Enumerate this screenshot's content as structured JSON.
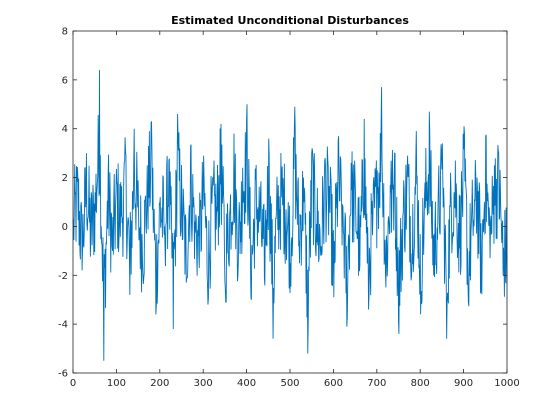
{
  "chart_data": {
    "type": "line",
    "title": "Estimated Unconditional Disturbances",
    "xlabel": "",
    "ylabel": "",
    "xlim": [
      0,
      1000
    ],
    "ylim": [
      -6,
      8
    ],
    "x_ticks": [
      0,
      100,
      200,
      300,
      400,
      500,
      600,
      700,
      800,
      900,
      1000
    ],
    "y_ticks": [
      -6,
      -4,
      -2,
      0,
      2,
      4,
      6,
      8
    ],
    "grid": false,
    "line_color": "#0072BD",
    "n_points": 1000,
    "series": [
      {
        "x_start": 1,
        "x_step": 1,
        "values_sampled_every_10": [
          0.3,
          2.1,
          -1.8,
          3.0,
          -0.5,
          1.4,
          6.4,
          -5.5,
          2.2,
          -1.0,
          1.8,
          0.4,
          3.1,
          -2.8,
          4.0,
          0.6,
          -1.9,
          2.5,
          4.3,
          -3.6,
          1.2,
          0.0,
          2.7,
          -4.2,
          4.6,
          1.1,
          -2.3,
          3.3,
          0.2,
          -1.7,
          2.9,
          -3.2,
          1.5,
          0.8,
          4.2,
          -2.6,
          0.5,
          3.8,
          -1.4,
          2.4,
          5.0,
          -3.0,
          1.9,
          0.3,
          -2.1,
          3.6,
          -4.6,
          1.0,
          2.2,
          0.7,
          -1.5,
          4.9,
          -0.6,
          2.0,
          -5.2,
          3.2,
          0.1,
          -1.2,
          2.8,
          1.6,
          -2.9,
          3.5,
          0.9,
          -4.1,
          2.6,
          1.3,
          -1.6,
          4.4,
          -3.4,
          0.4,
          2.3,
          5.7,
          -2.5,
          1.7,
          3.0,
          -4.4,
          0.6,
          2.9,
          -1.1,
          3.9,
          -3.6,
          1.8,
          4.7,
          -2.0,
          0.8,
          3.4,
          -4.6,
          1.4,
          2.7,
          -0.9,
          4.1,
          -3.1,
          0.5,
          2.0,
          -2.6,
          3.7,
          -1.3,
          2.5,
          3.0,
          -2.0
        ]
      }
    ]
  }
}
